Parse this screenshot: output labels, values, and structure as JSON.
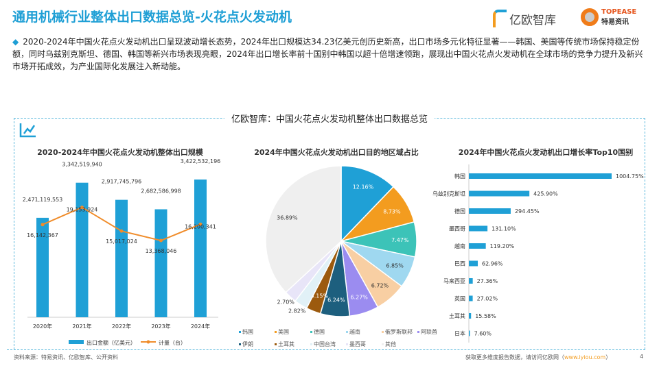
{
  "title": "通用机械行业整体出口数据总览-火花点火发动机",
  "summary": "2020-2024年中国火花点火发动机出口呈现波动增长态势，2024年出口规模达34.23亿美元创历史新高，出口市场多元化特征显著——韩国、美国等传统市场保持稳定份额，同时乌兹别克斯坦、德国、韩国等新兴市场表现亮眼，2024年出口增长率前十国别中韩国以超十倍增速领跑，展现出中国火花点火发动机在全球市场的竞争力提升及新兴市场开拓成效，为产业国际化发展注入新动能。",
  "logos": {
    "yiou": "亿欧智库",
    "topease_en": "TOPEASE",
    "topease_cn": "特易资讯"
  },
  "panel_title": "亿欧智库：中国火花点火发动机整体出口数据总览",
  "chart_data": [
    {
      "type": "bar+line",
      "title": "2020-2024年中国火花点火发动机整体出口规模",
      "categories": [
        "2020年",
        "2021年",
        "2022年",
        "2023年",
        "2024年"
      ],
      "series": [
        {
          "name": "出口金额（亿美元）",
          "type": "bar",
          "color": "#1fa0d6",
          "values": [
            2471119553,
            3342519940,
            2917745796,
            2682586998,
            3422532196
          ],
          "labels": [
            "2,471,119,553",
            "3,342,519,940",
            "2,917,745,796",
            "2,682,586,998",
            "3,422,532,196"
          ]
        },
        {
          "name": "计量（台）",
          "type": "line",
          "color": "#f08c2a",
          "values": [
            16142367,
            19153924,
            15017024,
            13368046,
            16200341
          ],
          "labels": [
            "16,142,367",
            "19,153,924",
            "15,017,024",
            "13,368,046",
            "16,200,341"
          ]
        }
      ]
    },
    {
      "type": "pie",
      "title": "2024年中国火花点火发动机出口目的地区域占比",
      "slices": [
        {
          "name": "韩国",
          "value": 12.16,
          "label": "12.16%",
          "color": "#1fa0d6"
        },
        {
          "name": "美国",
          "value": 8.73,
          "label": "8.73%",
          "color": "#f39c1f"
        },
        {
          "name": "德国",
          "value": 7.47,
          "label": "7.47%",
          "color": "#3cc3b8"
        },
        {
          "name": "越南",
          "value": 6.85,
          "label": "6.85%",
          "color": "#9fd8f0"
        },
        {
          "name": "俄罗斯联邦",
          "value": 6.72,
          "label": "6.72%",
          "color": "#f8cfa3"
        },
        {
          "name": "阿联酋",
          "value": 6.27,
          "label": "6.27%",
          "color": "#9b8cf0"
        },
        {
          "name": "伊朗",
          "value": 6.24,
          "label": "6.24%",
          "color": "#1d5f7e"
        },
        {
          "name": "土耳其",
          "value": 3.15,
          "label": "3.15%",
          "color": "#9c5a0e"
        },
        {
          "name": "中国台湾",
          "value": 2.82,
          "label": "2.82%",
          "color": "#e1f1f7"
        },
        {
          "name": "墨西哥",
          "value": 2.7,
          "label": "2.70%",
          "color": "#e8e5f8"
        },
        {
          "name": "其他",
          "value": 36.89,
          "label": "36.89%",
          "color": "#efefef"
        }
      ]
    },
    {
      "type": "bar",
      "orientation": "horizontal",
      "title": "2024年中国火花点火发动机出口增长率Top10国别",
      "color": "#1fa0d6",
      "categories": [
        "韩国",
        "乌兹别克斯坦",
        "德国",
        "墨西哥",
        "越南",
        "巴西",
        "马来西亚",
        "英国",
        "土耳其",
        "日本"
      ],
      "values": [
        1004.75,
        425.9,
        294.45,
        131.1,
        119.2,
        62.96,
        27.36,
        27.02,
        15.58,
        7.6
      ],
      "labels": [
        "1004.75%",
        "425.90%",
        "294.45%",
        "131.10%",
        "119.20%",
        "62.96%",
        "27.36%",
        "27.02%",
        "15.58%",
        "7.60%"
      ]
    }
  ],
  "source": "资料来源：特易资讯、亿欧智库、公开资料",
  "footer": {
    "text": "获取更多维度报告数据，请访问亿欧网（",
    "link": "www.iyiou.com",
    "end": "）"
  },
  "page": "4"
}
